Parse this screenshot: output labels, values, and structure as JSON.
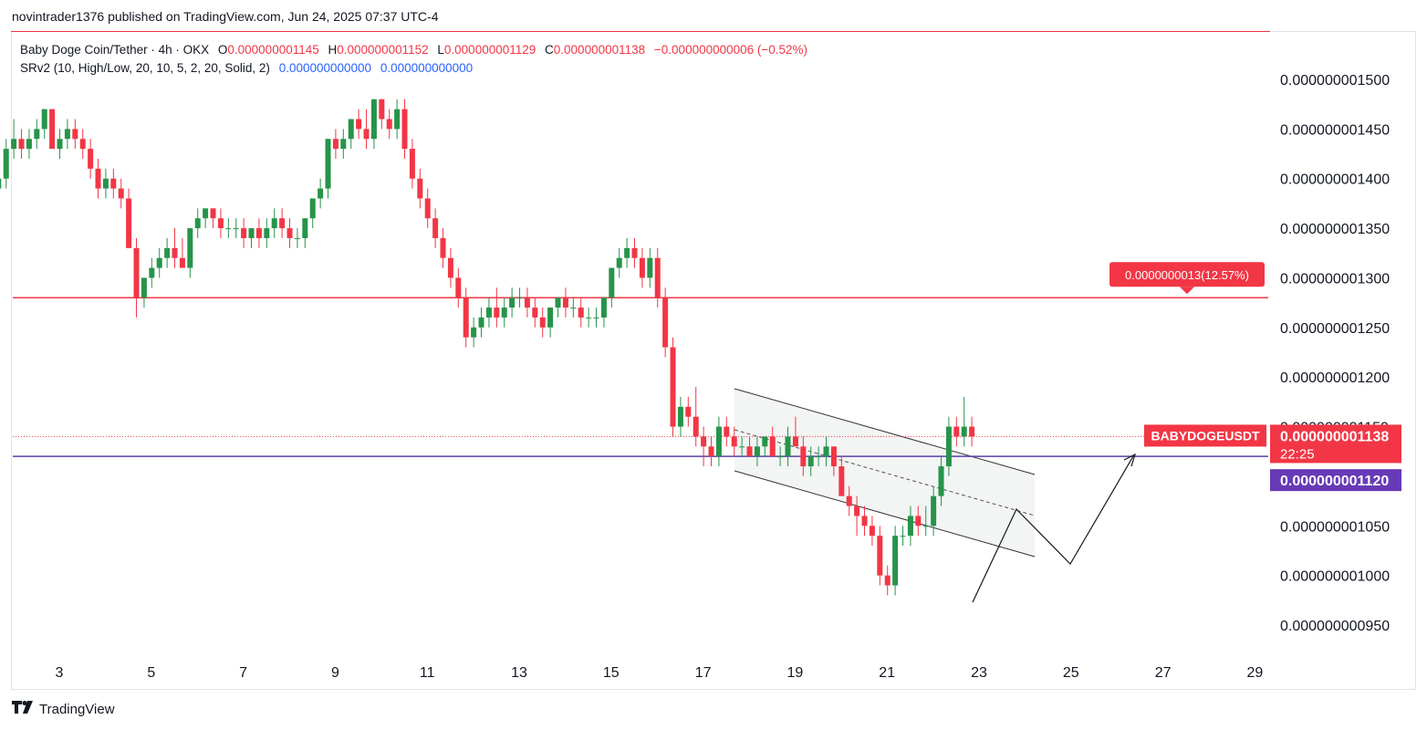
{
  "header": {
    "publisher": "novintrader1376 published on TradingView.com, Jun 24, 2025 07:37 UTC-4"
  },
  "legend": {
    "symbol": "Baby Doge Coin/Tether · 4h · OKX",
    "open_label": "O",
    "open": "0.000000001145",
    "high_label": "H",
    "high": "0.000000001152",
    "low_label": "L",
    "low": "0.000000001129",
    "close_label": "C",
    "close": "0.000000001138",
    "change": "−0.000000000006 (−0.52%)",
    "indicator": "SRv2 (10, High/Low, 20, 10, 5, 2, 20, Solid, 2)",
    "indicator_v1": "0.000000000000",
    "indicator_v2": "0.000000000000"
  },
  "footer": {
    "brand": "TradingView"
  },
  "colors": {
    "up": "#22ab94",
    "up_body": "#26944a",
    "down": "#f23645",
    "resistance_line": "#f23645",
    "support_line": "#5b3fa8",
    "channel_fill": "#f3f4f4",
    "label_red": "#f23645",
    "label_purple": "#673ab7"
  },
  "chart_data": {
    "type": "candlestick",
    "timeframe": "4h",
    "x_ticks": [
      "3",
      "5",
      "7",
      "9",
      "11",
      "13",
      "15",
      "17",
      "19",
      "21",
      "23",
      "25",
      "27",
      "29"
    ],
    "x_range_days": [
      2,
      29.6
    ],
    "y_ticks": [
      "0.000000001500",
      "0.000000001450",
      "0.000000001400",
      "0.000000001350",
      "0.000000001300",
      "0.000000001250",
      "0.000000001200",
      "0.000000001150",
      "0.000000001050",
      "0.000000001000",
      "0.000000000950"
    ],
    "y_range": [
      9.3e-10,
      1.52e-09
    ],
    "candles_units": "e-9 (multiply by 1e-9)",
    "candles": [
      [
        1.4,
        1.41,
        1.38,
        1.39
      ],
      [
        1.39,
        1.42,
        1.37,
        1.41
      ],
      [
        1.41,
        1.42,
        1.38,
        1.39
      ],
      [
        1.39,
        1.42,
        1.38,
        1.4
      ],
      [
        1.4,
        1.44,
        1.39,
        1.43
      ],
      [
        1.43,
        1.46,
        1.42,
        1.44
      ],
      [
        1.44,
        1.45,
        1.42,
        1.43
      ],
      [
        1.43,
        1.45,
        1.42,
        1.44
      ],
      [
        1.44,
        1.46,
        1.43,
        1.45
      ],
      [
        1.45,
        1.47,
        1.44,
        1.47
      ],
      [
        1.47,
        1.47,
        1.43,
        1.43
      ],
      [
        1.43,
        1.45,
        1.42,
        1.44
      ],
      [
        1.44,
        1.46,
        1.43,
        1.45
      ],
      [
        1.45,
        1.46,
        1.43,
        1.44
      ],
      [
        1.44,
        1.45,
        1.42,
        1.43
      ],
      [
        1.43,
        1.44,
        1.4,
        1.41
      ],
      [
        1.41,
        1.42,
        1.38,
        1.39
      ],
      [
        1.39,
        1.41,
        1.38,
        1.4
      ],
      [
        1.4,
        1.41,
        1.38,
        1.39
      ],
      [
        1.39,
        1.4,
        1.37,
        1.38
      ],
      [
        1.38,
        1.39,
        1.33,
        1.33
      ],
      [
        1.33,
        1.34,
        1.26,
        1.28
      ],
      [
        1.28,
        1.3,
        1.27,
        1.3
      ],
      [
        1.3,
        1.32,
        1.29,
        1.31
      ],
      [
        1.31,
        1.33,
        1.3,
        1.32
      ],
      [
        1.32,
        1.34,
        1.31,
        1.33
      ],
      [
        1.33,
        1.35,
        1.31,
        1.32
      ],
      [
        1.32,
        1.34,
        1.31,
        1.31
      ],
      [
        1.31,
        1.35,
        1.3,
        1.35
      ],
      [
        1.35,
        1.37,
        1.34,
        1.36
      ],
      [
        1.36,
        1.37,
        1.35,
        1.37
      ],
      [
        1.37,
        1.37,
        1.35,
        1.36
      ],
      [
        1.36,
        1.37,
        1.34,
        1.35
      ],
      [
        1.35,
        1.36,
        1.34,
        1.35
      ],
      [
        1.35,
        1.36,
        1.34,
        1.35
      ],
      [
        1.35,
        1.36,
        1.33,
        1.34
      ],
      [
        1.34,
        1.35,
        1.33,
        1.35
      ],
      [
        1.35,
        1.36,
        1.33,
        1.34
      ],
      [
        1.34,
        1.36,
        1.33,
        1.35
      ],
      [
        1.35,
        1.37,
        1.34,
        1.36
      ],
      [
        1.36,
        1.37,
        1.34,
        1.35
      ],
      [
        1.35,
        1.36,
        1.33,
        1.34
      ],
      [
        1.34,
        1.35,
        1.33,
        1.34
      ],
      [
        1.34,
        1.36,
        1.33,
        1.36
      ],
      [
        1.36,
        1.38,
        1.35,
        1.38
      ],
      [
        1.38,
        1.4,
        1.37,
        1.39
      ],
      [
        1.39,
        1.44,
        1.38,
        1.44
      ],
      [
        1.44,
        1.45,
        1.42,
        1.43
      ],
      [
        1.43,
        1.45,
        1.42,
        1.44
      ],
      [
        1.44,
        1.46,
        1.43,
        1.46
      ],
      [
        1.46,
        1.47,
        1.44,
        1.45
      ],
      [
        1.45,
        1.47,
        1.43,
        1.44
      ],
      [
        1.44,
        1.48,
        1.43,
        1.48
      ],
      [
        1.48,
        1.48,
        1.45,
        1.46
      ],
      [
        1.46,
        1.47,
        1.44,
        1.45
      ],
      [
        1.45,
        1.48,
        1.44,
        1.47
      ],
      [
        1.47,
        1.48,
        1.42,
        1.43
      ],
      [
        1.43,
        1.44,
        1.39,
        1.4
      ],
      [
        1.4,
        1.41,
        1.37,
        1.38
      ],
      [
        1.38,
        1.39,
        1.35,
        1.36
      ],
      [
        1.36,
        1.37,
        1.33,
        1.34
      ],
      [
        1.34,
        1.35,
        1.31,
        1.32
      ],
      [
        1.32,
        1.33,
        1.29,
        1.3
      ],
      [
        1.3,
        1.31,
        1.27,
        1.28
      ],
      [
        1.28,
        1.29,
        1.23,
        1.24
      ],
      [
        1.24,
        1.26,
        1.23,
        1.25
      ],
      [
        1.25,
        1.27,
        1.24,
        1.26
      ],
      [
        1.26,
        1.28,
        1.25,
        1.27
      ],
      [
        1.27,
        1.29,
        1.25,
        1.26
      ],
      [
        1.26,
        1.28,
        1.25,
        1.27
      ],
      [
        1.27,
        1.29,
        1.26,
        1.28
      ],
      [
        1.28,
        1.29,
        1.27,
        1.28
      ],
      [
        1.28,
        1.29,
        1.26,
        1.27
      ],
      [
        1.27,
        1.28,
        1.25,
        1.26
      ],
      [
        1.26,
        1.27,
        1.24,
        1.25
      ],
      [
        1.25,
        1.27,
        1.24,
        1.27
      ],
      [
        1.27,
        1.28,
        1.26,
        1.28
      ],
      [
        1.28,
        1.29,
        1.26,
        1.27
      ],
      [
        1.27,
        1.28,
        1.26,
        1.27
      ],
      [
        1.27,
        1.28,
        1.25,
        1.26
      ],
      [
        1.26,
        1.27,
        1.25,
        1.26
      ],
      [
        1.26,
        1.27,
        1.25,
        1.26
      ],
      [
        1.26,
        1.28,
        1.25,
        1.28
      ],
      [
        1.28,
        1.31,
        1.27,
        1.31
      ],
      [
        1.31,
        1.33,
        1.3,
        1.32
      ],
      [
        1.32,
        1.34,
        1.31,
        1.33
      ],
      [
        1.33,
        1.34,
        1.31,
        1.32
      ],
      [
        1.32,
        1.33,
        1.29,
        1.3
      ],
      [
        1.3,
        1.33,
        1.29,
        1.32
      ],
      [
        1.32,
        1.33,
        1.27,
        1.28
      ],
      [
        1.28,
        1.29,
        1.22,
        1.23
      ],
      [
        1.23,
        1.24,
        1.14,
        1.15
      ],
      [
        1.15,
        1.18,
        1.14,
        1.17
      ],
      [
        1.17,
        1.18,
        1.15,
        1.16
      ],
      [
        1.16,
        1.19,
        1.13,
        1.14
      ],
      [
        1.14,
        1.15,
        1.11,
        1.13
      ],
      [
        1.13,
        1.14,
        1.11,
        1.12
      ],
      [
        1.12,
        1.16,
        1.11,
        1.15
      ],
      [
        1.15,
        1.16,
        1.13,
        1.14
      ],
      [
        1.14,
        1.15,
        1.12,
        1.13
      ],
      [
        1.13,
        1.14,
        1.12,
        1.13
      ],
      [
        1.13,
        1.14,
        1.12,
        1.12
      ],
      [
        1.12,
        1.14,
        1.11,
        1.13
      ],
      [
        1.13,
        1.14,
        1.12,
        1.14
      ],
      [
        1.14,
        1.15,
        1.12,
        1.12
      ],
      [
        1.12,
        1.13,
        1.11,
        1.12
      ],
      [
        1.12,
        1.15,
        1.11,
        1.14
      ],
      [
        1.14,
        1.16,
        1.13,
        1.13
      ],
      [
        1.13,
        1.14,
        1.1,
        1.11
      ],
      [
        1.11,
        1.13,
        1.1,
        1.12
      ],
      [
        1.12,
        1.13,
        1.11,
        1.12
      ],
      [
        1.12,
        1.14,
        1.11,
        1.13
      ],
      [
        1.13,
        1.13,
        1.1,
        1.11
      ],
      [
        1.11,
        1.12,
        1.08,
        1.08
      ],
      [
        1.08,
        1.09,
        1.06,
        1.07
      ],
      [
        1.07,
        1.08,
        1.04,
        1.06
      ],
      [
        1.06,
        1.07,
        1.04,
        1.05
      ],
      [
        1.05,
        1.06,
        1.03,
        1.04
      ],
      [
        1.04,
        1.05,
        0.99,
        1.0
      ],
      [
        1.0,
        1.01,
        0.98,
        0.99
      ],
      [
        0.99,
        1.05,
        0.98,
        1.04
      ],
      [
        1.04,
        1.05,
        1.03,
        1.04
      ],
      [
        1.04,
        1.07,
        1.03,
        1.06
      ],
      [
        1.06,
        1.07,
        1.04,
        1.05
      ],
      [
        1.05,
        1.07,
        1.04,
        1.05
      ],
      [
        1.05,
        1.09,
        1.04,
        1.08
      ],
      [
        1.08,
        1.12,
        1.07,
        1.11
      ],
      [
        1.11,
        1.16,
        1.1,
        1.15
      ],
      [
        1.15,
        1.16,
        1.13,
        1.14
      ],
      [
        1.14,
        1.18,
        1.13,
        1.15
      ],
      [
        1.15,
        1.16,
        1.13,
        1.14
      ]
    ],
    "resistance_level": 1.28e-09,
    "support_level": 1.12e-09,
    "annotations": {
      "resistance_label": "0.0000000013(12.57%)",
      "symbol_label": "BABYDOGEUSDT",
      "last_price": "0.000000001138",
      "countdown": "22:25",
      "support_price": "0.000000001120"
    },
    "grid": false,
    "legend_position": "top-left"
  }
}
